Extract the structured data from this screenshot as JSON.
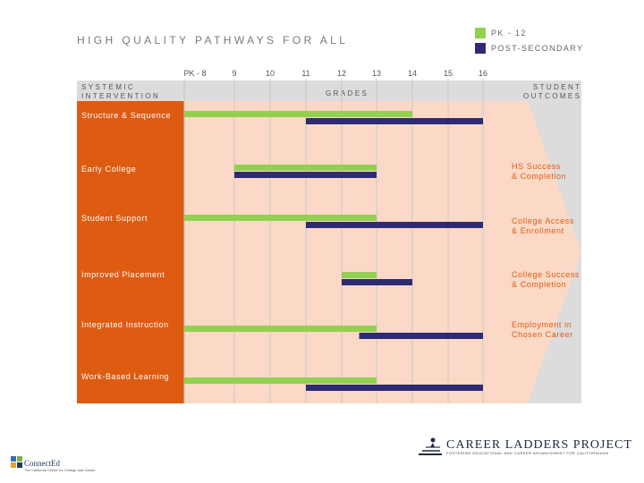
{
  "footer": {
    "connected_name": "ConnectEd",
    "connected_tagline": "The California Center for College and Career",
    "clp_name": "CAREER LADDERS PROJECT",
    "clp_tagline": "FOSTERING EDUCATIONAL AND CAREER ADVANCEMENT FOR CALIFORNIANS"
  },
  "colors": {
    "pk12": "#92d050",
    "post_secondary": "#2e2b74",
    "orange": "#de5b12",
    "peach": "#fbd9c6",
    "gray": "#dcdcdc"
  },
  "chart_data": {
    "type": "gantt",
    "title": "HIGH QUALITY PATHWAYS FOR ALL",
    "x_ticks": [
      "PK - 8",
      "9",
      "10",
      "11",
      "12",
      "13",
      "14",
      "15",
      "16"
    ],
    "xlabel": "GRADES",
    "left_header": "SYSTEMIC\nINTERVENTION",
    "right_header": "STUDENT\nOUTCOMES",
    "legend": [
      {
        "name": "PK - 12",
        "color": "#92d050"
      },
      {
        "name": "POST-SECONDARY",
        "color": "#2e2b74"
      }
    ],
    "rows": [
      {
        "label": "Structure & Sequence",
        "pk12": [
          8,
          14
        ],
        "post_secondary": [
          11,
          16
        ]
      },
      {
        "label": "Early College",
        "pk12": [
          9,
          13
        ],
        "post_secondary": [
          9,
          13
        ]
      },
      {
        "label": "Student Support",
        "pk12": [
          8,
          13
        ],
        "post_secondary": [
          11,
          16
        ]
      },
      {
        "label": "Improved Placement",
        "pk12": [
          12,
          13
        ],
        "post_secondary": [
          12,
          14
        ]
      },
      {
        "label": "Integrated Instruction",
        "pk12": [
          8,
          13
        ],
        "post_secondary": [
          12.5,
          16
        ]
      },
      {
        "label": "Work-Based Learning",
        "pk12": [
          8,
          13
        ],
        "post_secondary": [
          11,
          16
        ]
      }
    ],
    "outcomes": [
      "HS Success\n& Completion",
      "College Access\n& Enrollment",
      "College Success\n& Completion",
      "Employment in\nChosen Career"
    ]
  }
}
